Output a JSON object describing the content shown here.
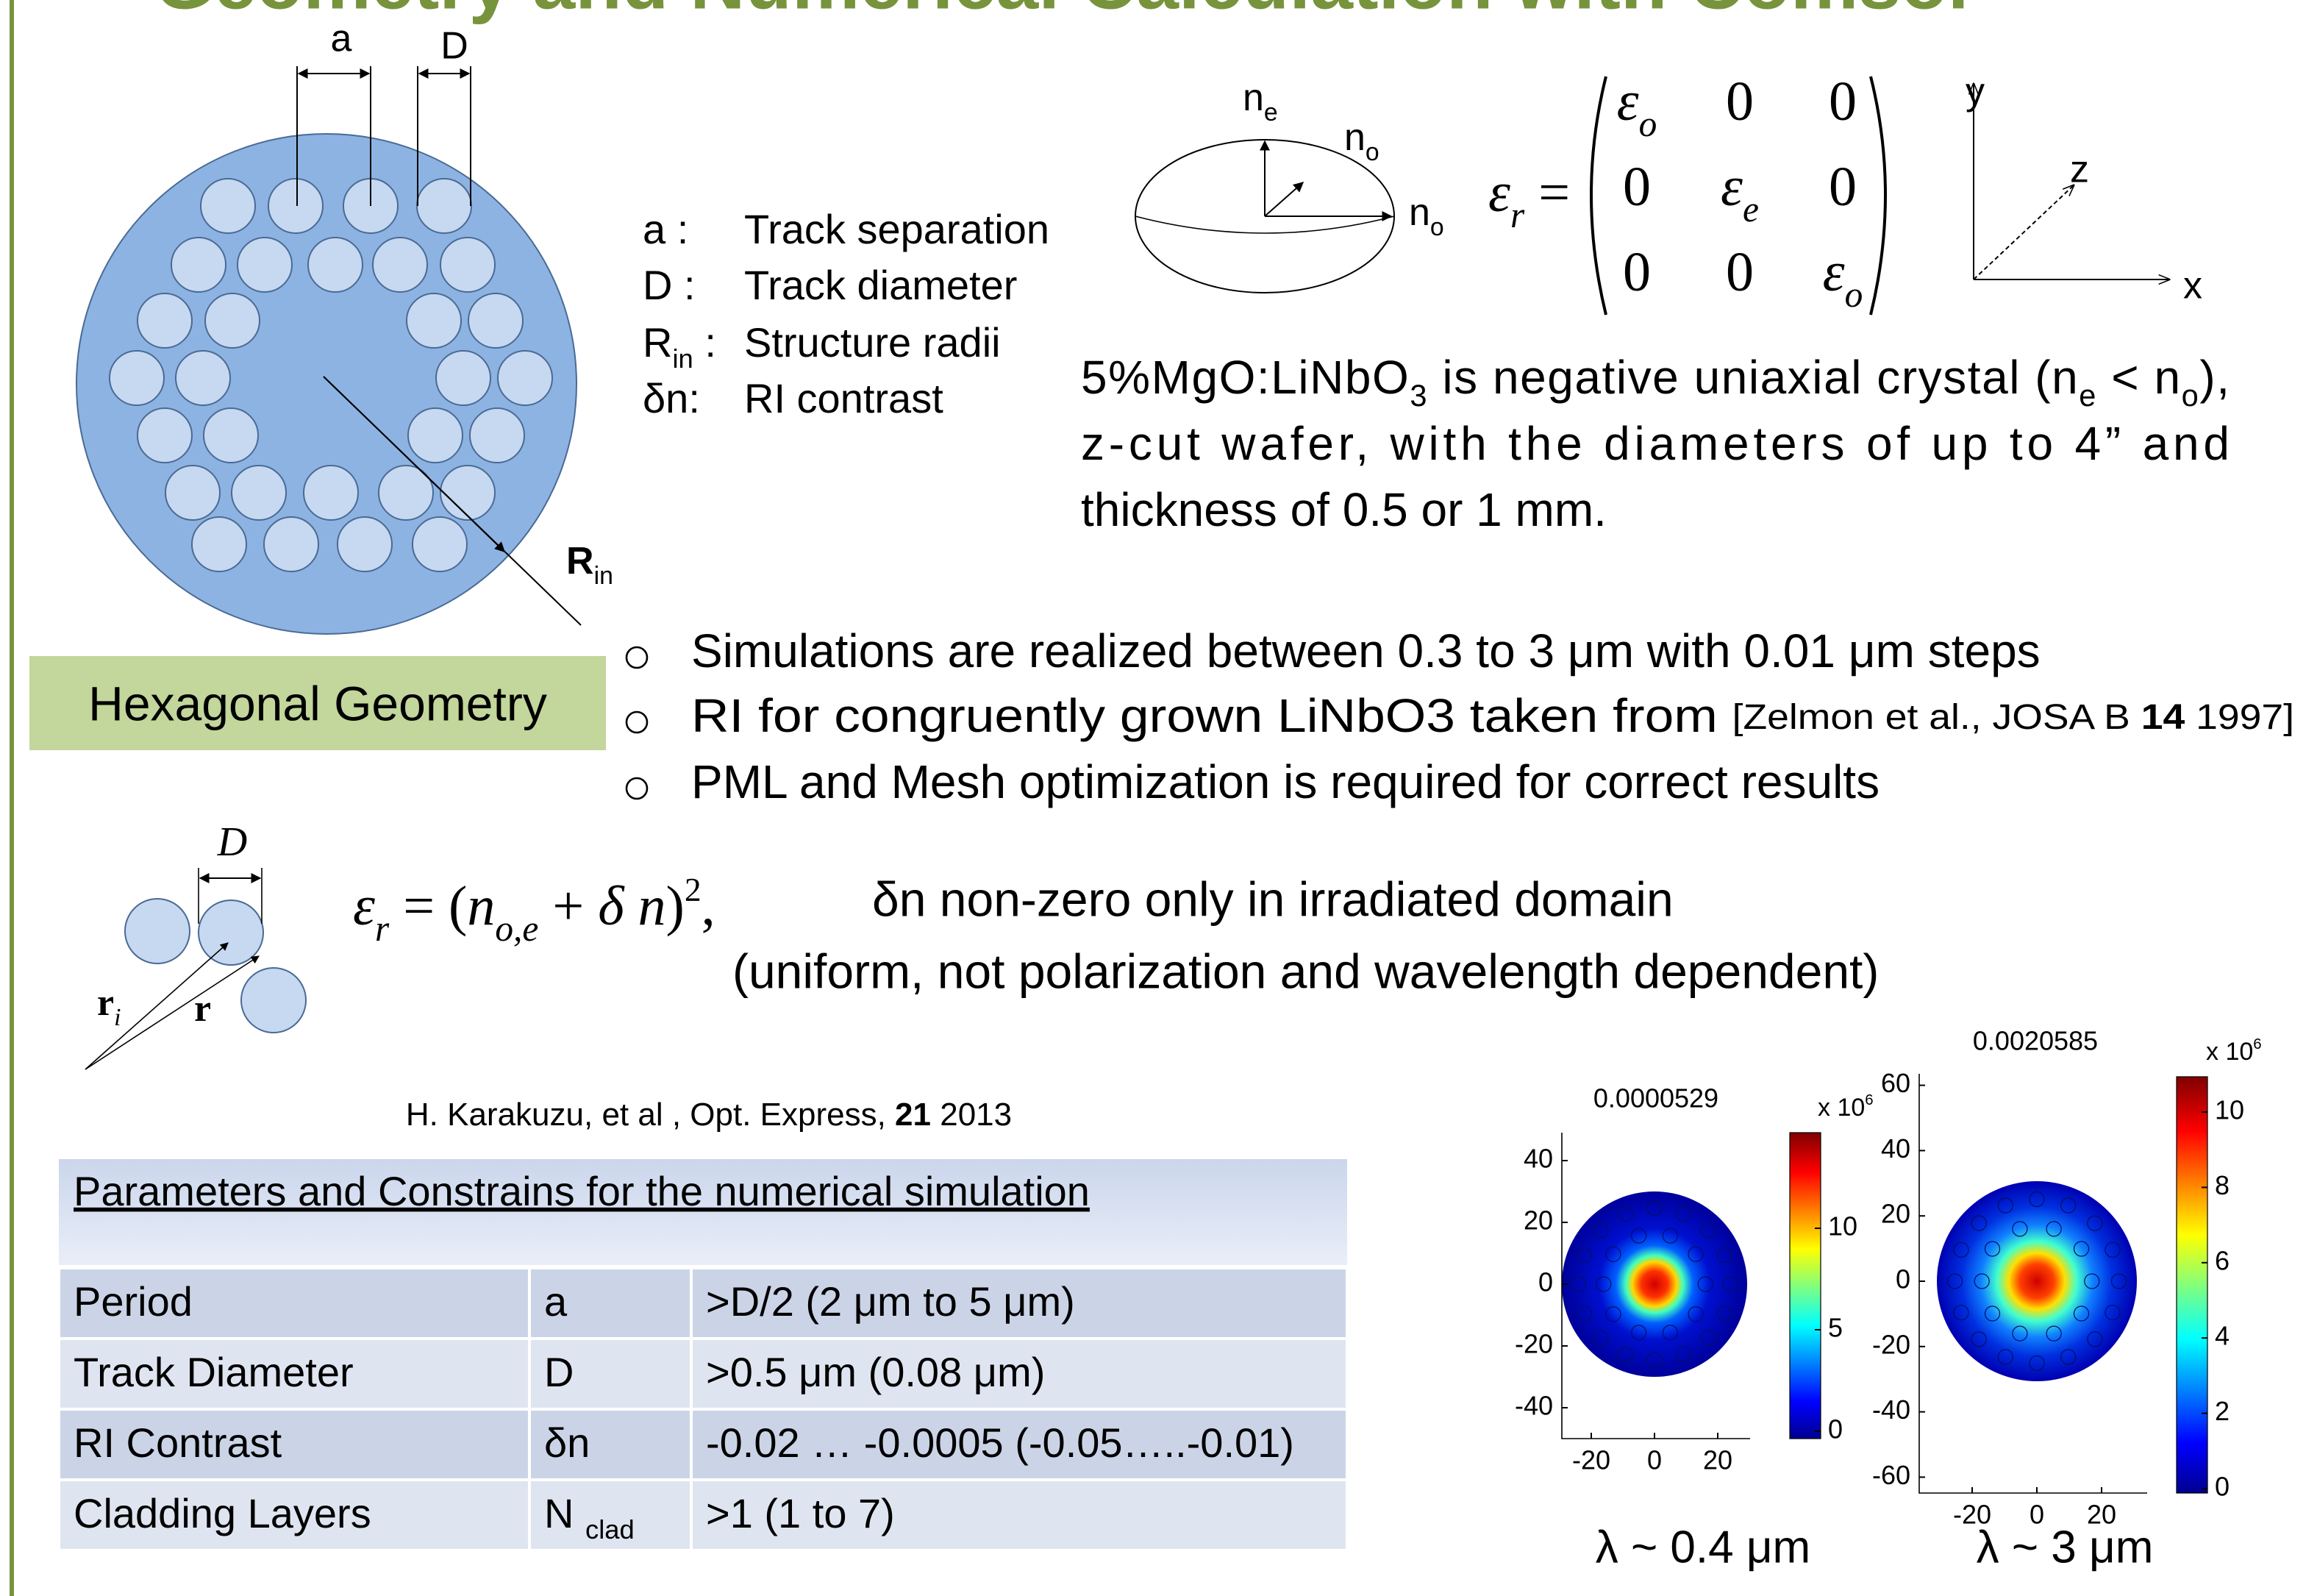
{
  "title": "Geometry and Numerical Calculation with Comsol",
  "geometry": {
    "a": "a",
    "D": "D",
    "R": [
      {
        "text": "R",
        "style": "bold"
      },
      {
        "text": "in",
        "style": "sub"
      }
    ],
    "caption": "Hexagonal  Geometry"
  },
  "legend": [
    {
      "symbol": [
        "a  :"
      ],
      "text": "Track separation"
    },
    {
      "symbol": [
        "D  :"
      ],
      "text": "Track diameter"
    },
    {
      "symbol": [
        "R",
        {
          "text": "in",
          "style": "sub"
        },
        " :"
      ],
      "text": "Structure radii"
    },
    {
      "symbol": [
        "δn:"
      ],
      "text": "RI contrast"
    }
  ],
  "ellipsoid": [
    [
      "n",
      {
        "text": "e",
        "style": "sub"
      }
    ],
    [
      "n",
      {
        "text": "o",
        "style": "sub"
      }
    ],
    [
      "n",
      {
        "text": "o",
        "style": "sub"
      }
    ]
  ],
  "tensor": {
    "lhs": [
      {
        "text": "ε",
        "style": "italic"
      },
      {
        "text": "r",
        "style": "italic sub"
      },
      " ="
    ],
    "matrix": [
      [
        [
          {
            "text": "ε",
            "style": "italic"
          },
          {
            "text": "o",
            "style": "italic sub"
          }
        ],
        [
          "0"
        ],
        [
          "0"
        ]
      ],
      [
        [
          "0"
        ],
        [
          {
            "text": "ε",
            "style": "italic"
          },
          {
            "text": "e",
            "style": "italic sub"
          }
        ],
        [
          "0"
        ]
      ],
      [
        [
          "0"
        ],
        [
          "0"
        ],
        [
          {
            "text": "ε",
            "style": "italic"
          },
          {
            "text": "o",
            "style": "italic sub"
          }
        ]
      ]
    ]
  },
  "axes": [
    "y",
    "z",
    "x"
  ],
  "description": [
    [
      "5%MgO:LiNbO",
      {
        "text": "3",
        "style": "sub"
      },
      " is negative uniaxial crystal (n",
      {
        "text": "e",
        "style": "sub"
      },
      " < n",
      {
        "text": "o",
        "style": "sub"
      },
      "),"
    ],
    [
      "z-cut wafer, with the diameters of up to 4” and"
    ],
    [
      "thickness of 0.5 or 1 mm."
    ]
  ],
  "bullets": [
    [
      "Simulations are realized between 0.3 to 3 μm with 0.01 μm steps"
    ],
    [
      "RI for  congruently grown  LiNbO3 taken from ",
      {
        "text": "[Zelmon et al., JOSA B ",
        "style": "small"
      },
      {
        "text": "14",
        "style": "small bold"
      },
      {
        "text": " 1997]",
        "style": "small"
      }
    ],
    [
      "PML and Mesh optimization is required for correct results"
    ]
  ],
  "formula": [
    {
      "text": "ε",
      "style": "italic"
    },
    {
      "text": "r",
      "style": "italic sub"
    },
    " = (",
    {
      "text": "n",
      "style": "italic"
    },
    {
      "text": "o,e",
      "style": "italic sub"
    },
    " + ",
    {
      "text": "δ n",
      "style": "italic"
    },
    ")",
    {
      "text": "2",
      "style": "sup"
    },
    ","
  ],
  "formula_notes": [
    "δn  non-zero only in irradiated domain",
    "(uniform, not polarization and wavelength dependent)"
  ],
  "track_detail": {
    "D": [
      {
        "text": "D",
        "style": "italic"
      }
    ],
    "ri": [
      {
        "text": "r",
        "style": "bold"
      },
      {
        "text": "i",
        "style": "italic sub"
      }
    ],
    "r": [
      {
        "text": "r",
        "style": "bold"
      }
    ]
  },
  "reference": [
    "H. Karakuzu, et al , Opt. Express, ",
    {
      "text": "21",
      "style": "bold"
    },
    " 2013"
  ],
  "table": {
    "heading": "Parameters and Constrains for the numerical simulation",
    "rows": [
      [
        [
          "Period"
        ],
        [
          "a"
        ],
        [
          ">D/2        (2 μm to 5 μm)"
        ]
      ],
      [
        [
          "Track Diameter"
        ],
        [
          "D"
        ],
        [
          ">0.5 μm    (0.08 μm)"
        ]
      ],
      [
        [
          "RI Contrast"
        ],
        [
          "δn"
        ],
        [
          "-0.02 … -0.0005   (-0.05…..-0.01)"
        ]
      ],
      [
        [
          "Cladding Layers"
        ],
        [
          "N ",
          {
            "text": "clad",
            "style": "sub"
          }
        ],
        [
          ">1            (1 to 7)"
        ]
      ]
    ]
  },
  "plots": [
    {
      "title": "0.0000529",
      "yticks": [
        40,
        20,
        0,
        -20,
        -40
      ],
      "xticks": [
        -20,
        0,
        20
      ],
      "cbar_ticks": [
        10,
        5,
        0
      ],
      "cbar_exp": [
        "x 10",
        {
          "text": "6",
          "style": "sup"
        }
      ],
      "caption": "λ ~ 0.4 μm"
    },
    {
      "title": "0.0020585",
      "yticks": [
        60,
        40,
        20,
        0,
        -20,
        -40,
        -60
      ],
      "xticks": [
        -20,
        0,
        20
      ],
      "cbar_ticks": [
        10,
        8,
        6,
        4,
        2,
        0
      ],
      "cbar_exp": [
        "x 10",
        {
          "text": "6",
          "style": "sup"
        }
      ],
      "caption": "λ ~ 3 μm"
    }
  ]
}
